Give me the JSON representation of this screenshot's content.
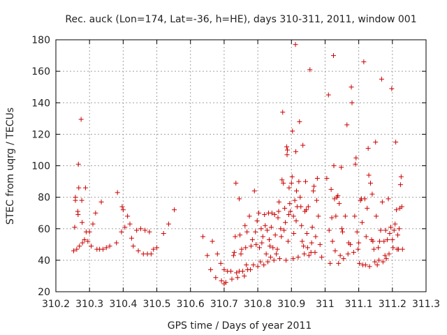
{
  "chart_data": {
    "type": "scatter",
    "title": "Rec. auck (Lon=174, Lat=-36, h=HE), days 310-311, 2011, window 001",
    "xlabel": "GPS time / Days of year 2011",
    "ylabel": "STEC from uqrg / TECUs",
    "xlim": [
      310.2,
      311.3
    ],
    "ylim": [
      20,
      180
    ],
    "xticks": [
      310.2,
      310.3,
      310.4,
      310.5,
      310.6,
      310.7,
      310.8,
      310.9,
      311.0,
      311.1,
      311.2,
      311.3
    ],
    "xtick_labels": [
      "310.2",
      "310.3",
      "310.4",
      "310.5",
      "310.6",
      "310.7",
      "310.8",
      "310.9",
      "311",
      "311.1",
      "311.2",
      "311.3"
    ],
    "yticks": [
      20,
      40,
      60,
      80,
      100,
      120,
      140,
      160,
      180
    ],
    "ytick_labels": [
      "20",
      "40",
      "60",
      "80",
      "100",
      "120",
      "140",
      "160",
      "180"
    ],
    "grid": true,
    "marker": "plus",
    "marker_color": "#cc0000",
    "series": [
      {
        "points": [
          [
            310.253,
            46
          ],
          [
            310.256,
            61
          ],
          [
            310.258,
            78
          ],
          [
            310.258,
            80
          ],
          [
            310.262,
            47
          ],
          [
            310.265,
            71
          ],
          [
            310.266,
            69
          ],
          [
            310.267,
            101
          ],
          [
            310.268,
            86
          ],
          [
            310.27,
            49
          ],
          [
            310.275,
            129.5
          ],
          [
            310.277,
            78
          ],
          [
            310.278,
            64
          ],
          [
            310.279,
            51
          ],
          [
            310.285,
            53
          ],
          [
            310.288,
            86
          ],
          [
            310.29,
            58
          ],
          [
            310.295,
            52
          ],
          [
            310.3,
            58
          ],
          [
            310.305,
            49
          ],
          [
            310.31,
            63
          ],
          [
            310.318,
            70
          ],
          [
            310.322,
            47
          ],
          [
            310.33,
            47
          ],
          [
            310.335,
            77
          ],
          [
            310.34,
            47
          ],
          [
            310.35,
            48
          ],
          [
            310.36,
            49
          ],
          [
            310.38,
            51
          ],
          [
            310.383,
            83
          ],
          [
            310.395,
            58
          ],
          [
            310.397,
            74
          ],
          [
            310.4,
            72
          ],
          [
            310.405,
            61
          ],
          [
            310.413,
            68
          ],
          [
            310.42,
            63
          ],
          [
            310.425,
            54
          ],
          [
            310.43,
            49
          ],
          [
            310.44,
            59
          ],
          [
            310.445,
            46
          ],
          [
            310.452,
            60
          ],
          [
            310.46,
            44
          ],
          [
            310.465,
            59
          ],
          [
            310.472,
            44
          ],
          [
            310.478,
            58
          ],
          [
            310.483,
            44
          ],
          [
            310.49,
            47
          ],
          [
            310.5,
            48
          ],
          [
            310.52,
            57
          ],
          [
            310.535,
            63
          ],
          [
            310.552,
            72
          ],
          [
            310.637,
            55
          ],
          [
            310.65,
            43
          ],
          [
            310.66,
            34
          ],
          [
            310.665,
            52
          ],
          [
            310.675,
            29
          ],
          [
            310.68,
            44
          ],
          [
            310.69,
            38
          ],
          [
            310.692,
            27
          ],
          [
            310.7,
            34
          ],
          [
            310.7,
            25
          ],
          [
            310.705,
            26
          ],
          [
            310.71,
            33
          ],
          [
            310.72,
            33
          ],
          [
            310.723,
            28
          ],
          [
            310.728,
            43
          ],
          [
            310.73,
            45
          ],
          [
            310.733,
            55
          ],
          [
            310.735,
            89
          ],
          [
            310.737,
            32
          ],
          [
            310.74,
            29
          ],
          [
            310.745,
            33
          ],
          [
            310.745,
            79
          ],
          [
            310.747,
            56
          ],
          [
            310.75,
            44
          ],
          [
            310.752,
            47
          ],
          [
            310.755,
            33
          ],
          [
            310.76,
            30
          ],
          [
            310.762,
            62
          ],
          [
            310.764,
            48
          ],
          [
            310.766,
            37
          ],
          [
            310.768,
            58
          ],
          [
            310.77,
            34
          ],
          [
            310.775,
            68
          ],
          [
            310.778,
            34
          ],
          [
            310.78,
            49
          ],
          [
            310.784,
            53
          ],
          [
            310.787,
            37
          ],
          [
            310.79,
            84
          ],
          [
            310.793,
            58
          ],
          [
            310.795,
            50
          ],
          [
            310.798,
            65
          ],
          [
            310.8,
            36
          ],
          [
            310.803,
            70
          ],
          [
            310.805,
            48
          ],
          [
            310.808,
            39
          ],
          [
            310.81,
            60
          ],
          [
            310.812,
            51
          ],
          [
            310.815,
            55
          ],
          [
            310.818,
            37
          ],
          [
            310.82,
            69
          ],
          [
            310.822,
            62
          ],
          [
            310.825,
            44
          ],
          [
            310.828,
            59
          ],
          [
            310.83,
            39
          ],
          [
            310.832,
            70
          ],
          [
            310.834,
            53
          ],
          [
            310.836,
            49
          ],
          [
            310.838,
            42
          ],
          [
            310.84,
            61
          ],
          [
            310.842,
            70
          ],
          [
            310.845,
            48
          ],
          [
            310.848,
            40
          ],
          [
            310.85,
            69
          ],
          [
            310.852,
            56
          ],
          [
            310.855,
            44
          ],
          [
            310.858,
            47
          ],
          [
            310.86,
            67
          ],
          [
            310.862,
            71
          ],
          [
            310.863,
            77
          ],
          [
            310.865,
            41
          ],
          [
            310.868,
            60
          ],
          [
            310.87,
            55
          ],
          [
            310.872,
            91
          ],
          [
            310.874,
            134
          ],
          [
            310.876,
            89
          ],
          [
            310.878,
            59
          ],
          [
            310.88,
            73
          ],
          [
            310.882,
            64
          ],
          [
            310.884,
            40
          ],
          [
            310.886,
            112
          ],
          [
            310.887,
            107
          ],
          [
            310.888,
            110
          ],
          [
            310.89,
            52
          ],
          [
            310.892,
            69
          ],
          [
            310.893,
            86
          ],
          [
            310.895,
            76
          ],
          [
            310.897,
            71
          ],
          [
            310.9,
            89
          ],
          [
            310.902,
            93
          ],
          [
            310.903,
            122
          ],
          [
            310.905,
            41
          ],
          [
            310.906,
            68
          ],
          [
            310.907,
            57
          ],
          [
            310.91,
            78
          ],
          [
            310.912,
            177
          ],
          [
            310.913,
            109
          ],
          [
            310.914,
            65
          ],
          [
            310.915,
            84
          ],
          [
            310.917,
            74
          ],
          [
            310.92,
            42
          ],
          [
            310.922,
            90
          ],
          [
            310.924,
            128
          ],
          [
            310.926,
            80
          ],
          [
            310.928,
            74
          ],
          [
            310.93,
            62
          ],
          [
            310.932,
            52
          ],
          [
            310.934,
            113
          ],
          [
            310.936,
            49
          ],
          [
            310.938,
            44
          ],
          [
            310.94,
            71
          ],
          [
            310.942,
            90
          ],
          [
            310.944,
            72
          ],
          [
            310.946,
            57
          ],
          [
            310.948,
            48
          ],
          [
            310.95,
            74
          ],
          [
            310.952,
            43
          ],
          [
            310.955,
            161
          ],
          [
            310.958,
            45
          ],
          [
            310.96,
            51
          ],
          [
            310.962,
            61
          ],
          [
            310.965,
            84
          ],
          [
            310.967,
            87
          ],
          [
            310.97,
            45
          ],
          [
            310.972,
            55
          ],
          [
            310.975,
            78
          ],
          [
            310.977,
            92
          ],
          [
            310.98,
            68
          ],
          [
            310.985,
            50
          ],
          [
            310.99,
            42
          ],
          [
            311.005,
            92
          ],
          [
            311.01,
            145
          ],
          [
            311.012,
            59
          ],
          [
            311.015,
            38
          ],
          [
            311.018,
            85
          ],
          [
            311.02,
            67
          ],
          [
            311.022,
            52
          ],
          [
            311.025,
            170
          ],
          [
            311.026,
            100
          ],
          [
            311.028,
            79
          ],
          [
            311.03,
            46
          ],
          [
            311.032,
            68
          ],
          [
            311.035,
            80
          ],
          [
            311.038,
            81
          ],
          [
            311.04,
            38
          ],
          [
            311.042,
            76
          ],
          [
            311.045,
            43
          ],
          [
            311.048,
            99
          ],
          [
            311.05,
            60
          ],
          [
            311.052,
            58
          ],
          [
            311.055,
            41
          ],
          [
            311.06,
            68
          ],
          [
            311.065,
            126
          ],
          [
            311.068,
            44
          ],
          [
            311.07,
            51
          ],
          [
            311.075,
            50
          ],
          [
            311.078,
            150
          ],
          [
            311.08,
            140
          ],
          [
            311.085,
            45
          ],
          [
            311.088,
            68
          ],
          [
            311.09,
            101
          ],
          [
            311.092,
            105
          ],
          [
            311.095,
            58
          ],
          [
            311.098,
            47
          ],
          [
            311.1,
            51
          ],
          [
            311.102,
            38
          ],
          [
            311.105,
            78
          ],
          [
            311.108,
            79
          ],
          [
            311.11,
            64
          ],
          [
            311.112,
            37
          ],
          [
            311.115,
            166
          ],
          [
            311.118,
            79
          ],
          [
            311.12,
            37
          ],
          [
            311.122,
            55
          ],
          [
            311.125,
            73
          ],
          [
            311.128,
            111
          ],
          [
            311.13,
            94
          ],
          [
            311.132,
            36
          ],
          [
            311.135,
            89
          ],
          [
            311.138,
            53
          ],
          [
            311.14,
            82
          ],
          [
            311.142,
            52
          ],
          [
            311.145,
            47
          ],
          [
            311.148,
            39
          ],
          [
            311.15,
            115
          ],
          [
            311.152,
            68
          ],
          [
            311.155,
            37
          ],
          [
            311.158,
            48
          ],
          [
            311.16,
            40
          ],
          [
            311.162,
            52
          ],
          [
            311.165,
            59
          ],
          [
            311.168,
            155
          ],
          [
            311.17,
            77
          ],
          [
            311.172,
            39
          ],
          [
            311.175,
            52
          ],
          [
            311.178,
            43
          ],
          [
            311.18,
            59
          ],
          [
            311.182,
            41
          ],
          [
            311.185,
            53
          ],
          [
            311.188,
            79
          ],
          [
            311.19,
            44
          ],
          [
            311.192,
            57
          ],
          [
            311.195,
            61
          ],
          [
            311.198,
            149
          ],
          [
            311.2,
            53
          ],
          [
            311.202,
            48
          ],
          [
            311.205,
            59
          ],
          [
            311.208,
            63
          ],
          [
            311.21,
            115
          ],
          [
            311.212,
            72
          ],
          [
            311.214,
            47
          ],
          [
            311.216,
            56
          ],
          [
            311.218,
            47
          ],
          [
            311.22,
            60
          ],
          [
            311.222,
            73
          ],
          [
            311.224,
            88
          ],
          [
            311.226,
            93
          ],
          [
            311.228,
            74
          ],
          [
            311.23,
            47
          ]
        ]
      }
    ]
  }
}
